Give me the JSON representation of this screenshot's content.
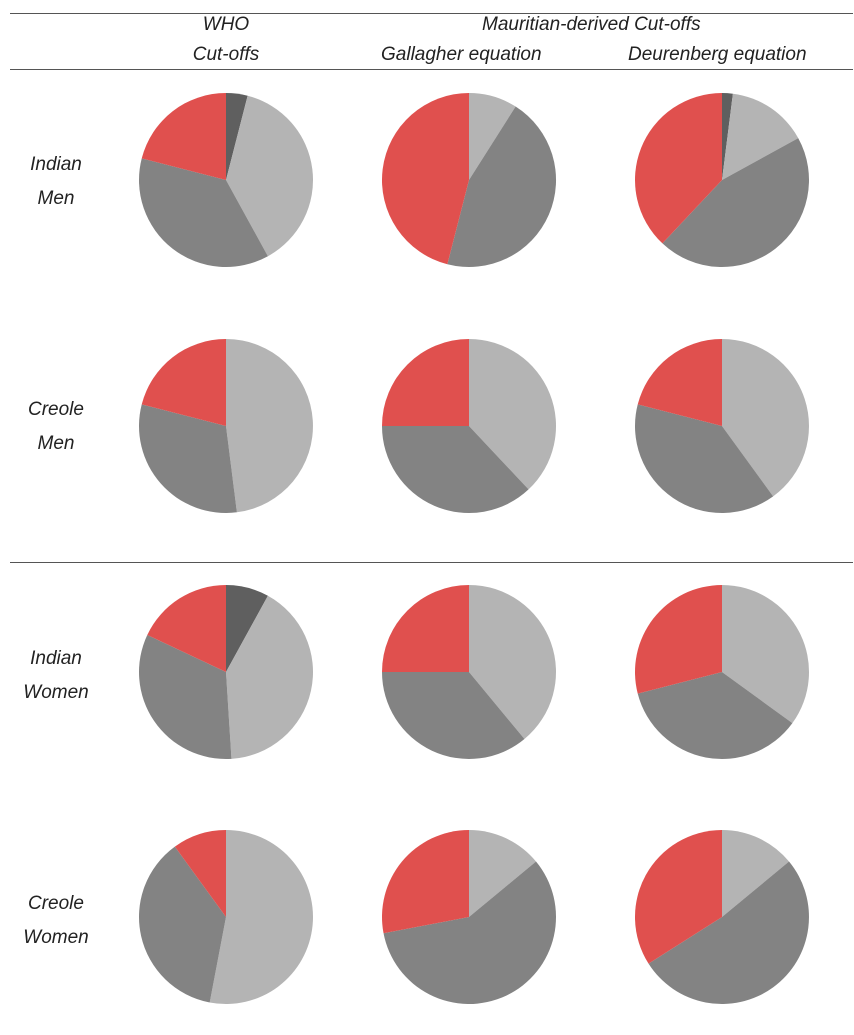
{
  "header": {
    "who_line1": "WHO",
    "who_line2": "Cut-offs",
    "mauritian": "Mauritian-derived Cut-offs",
    "gallagher": "Gallagher equation",
    "deurenberg": "Deurenberg equation"
  },
  "rows": [
    {
      "line1": "Indian",
      "line2": "Men"
    },
    {
      "line1": "Creole",
      "line2": "Men"
    },
    {
      "line1": "Indian",
      "line2": "Women"
    },
    {
      "line1": "Creole",
      "line2": "Women"
    }
  ],
  "colors": {
    "dark": "#5f5f5f",
    "light": "#b4b4b4",
    "mid": "#838383",
    "red": "#e0504e"
  },
  "chart_data": {
    "type": "pie",
    "slice_order": [
      "dark",
      "light",
      "mid",
      "red"
    ],
    "note_on_order": "",
    "pies": [
      {
        "row": "Indian Men",
        "column": "WHO Cut-offs",
        "values": [
          4,
          38,
          37,
          21
        ]
      },
      {
        "row": "Indian Men",
        "column": "Gallagher equation",
        "values": [
          0,
          9,
          45,
          46
        ]
      },
      {
        "row": "Indian Men",
        "column": "Deurenberg equation",
        "values": [
          2,
          15,
          45,
          38
        ]
      },
      {
        "row": "Creole Men",
        "column": "WHO Cut-offs",
        "values": [
          0,
          48,
          31,
          21
        ]
      },
      {
        "row": "Creole Men",
        "column": "Gallagher equation",
        "values": [
          0,
          38,
          37,
          25
        ]
      },
      {
        "row": "Creole Men",
        "column": "Deurenberg equation",
        "values": [
          0,
          40,
          39,
          21
        ]
      },
      {
        "row": "Indian Women",
        "column": "WHO Cut-offs",
        "values": [
          8,
          41,
          33,
          18
        ]
      },
      {
        "row": "Indian Women",
        "column": "Gallagher equation",
        "values": [
          0,
          39,
          36,
          25
        ]
      },
      {
        "row": "Indian Women",
        "column": "Deurenberg equation",
        "values": [
          0,
          35,
          36,
          29
        ]
      },
      {
        "row": "Creole Women",
        "column": "WHO Cut-offs",
        "values": [
          0,
          53,
          37,
          10
        ]
      },
      {
        "row": "Creole Women",
        "column": "Gallagher equation",
        "values": [
          0,
          14,
          58,
          28
        ]
      },
      {
        "row": "Creole Women",
        "column": "Deurenberg equation",
        "values": [
          0,
          14,
          52,
          34
        ]
      }
    ]
  }
}
